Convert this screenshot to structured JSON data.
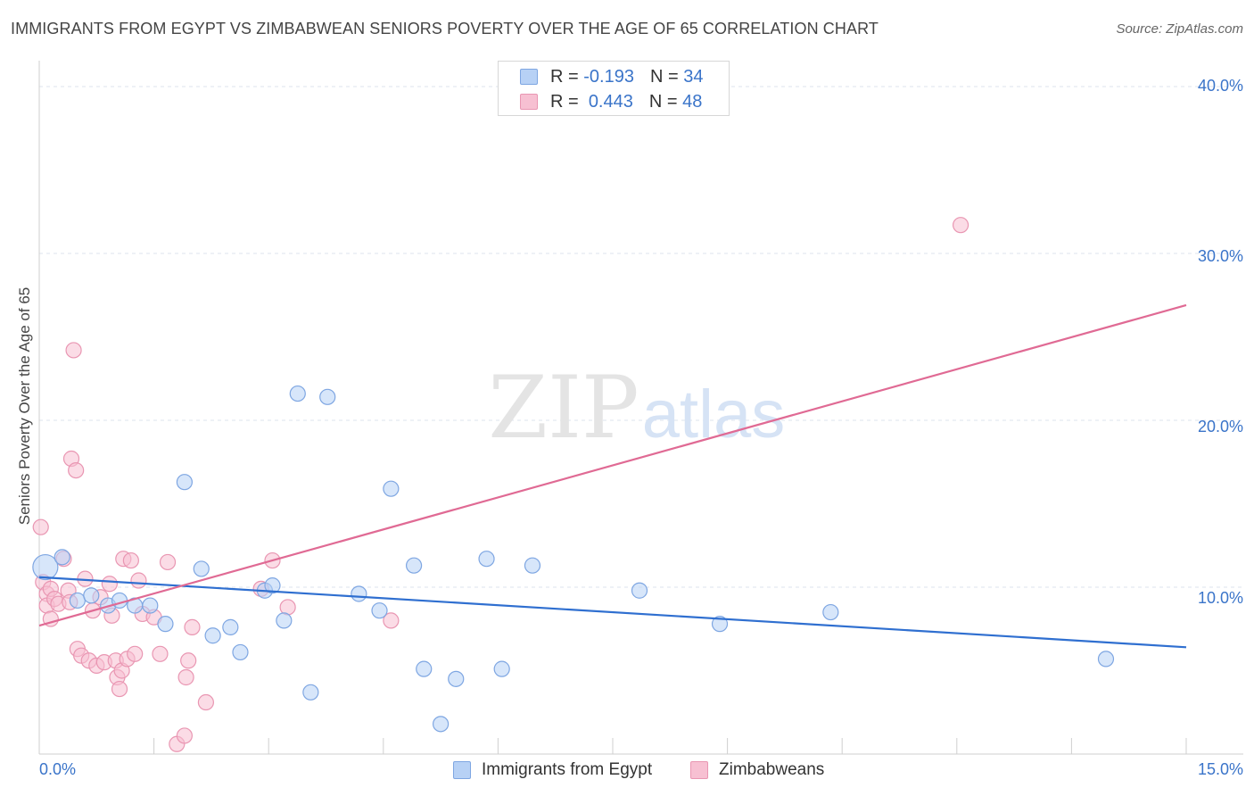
{
  "title": "IMMIGRANTS FROM EGYPT VS ZIMBABWEAN SENIORS POVERTY OVER THE AGE OF 65 CORRELATION CHART",
  "source": "Source: ZipAtlas.com",
  "watermark": {
    "zip": "ZIP",
    "atlas": "atlas"
  },
  "colors": {
    "egypt_fill": "#b7d1f5",
    "egypt_stroke": "#7ea6e2",
    "egypt_line": "#2f6fd0",
    "zimb_fill": "#f7c0d2",
    "zimb_stroke": "#e996b2",
    "zimb_line": "#e06a94",
    "axis_text": "#3a74c9",
    "grid": "#dde3ec"
  },
  "stats": {
    "r_label": "R =",
    "n_label": "N =",
    "egypt": {
      "r": "-0.193",
      "n": "34"
    },
    "zimb": {
      "r": "0.443",
      "n": "48"
    }
  },
  "legend": {
    "egypt": "Immigrants from Egypt",
    "zimb": "Zimbabweans"
  },
  "chart_data": {
    "type": "scatter",
    "title": "IMMIGRANTS FROM EGYPT VS ZIMBABWEAN SENIORS POVERTY OVER THE AGE OF 65 CORRELATION CHART",
    "xlabel": "",
    "ylabel": "Seniors Poverty Over the Age of 65",
    "xlim": [
      0,
      15
    ],
    "ylim": [
      0,
      40
    ],
    "x_ticks": [
      "0.0%",
      "15.0%"
    ],
    "y_ticks": [
      {
        "value": 10,
        "label": "10.0%"
      },
      {
        "value": 20,
        "label": "20.0%"
      },
      {
        "value": 30,
        "label": "30.0%"
      },
      {
        "value": 40,
        "label": "40.0%"
      }
    ],
    "grid": true,
    "legend_position": "bottom",
    "series": [
      {
        "name": "Immigrants from Egypt",
        "trend": [
          [
            0,
            10.6
          ],
          [
            15,
            6.4
          ]
        ],
        "points": [
          {
            "x": 0.08,
            "y": 11.2,
            "big": true
          },
          {
            "x": 0.3,
            "y": 11.8
          },
          {
            "x": 0.5,
            "y": 9.2
          },
          {
            "x": 0.68,
            "y": 9.5
          },
          {
            "x": 0.9,
            "y": 8.9
          },
          {
            "x": 1.05,
            "y": 9.2
          },
          {
            "x": 1.25,
            "y": 8.9
          },
          {
            "x": 1.45,
            "y": 8.9
          },
          {
            "x": 1.65,
            "y": 7.8
          },
          {
            "x": 1.9,
            "y": 16.3
          },
          {
            "x": 2.12,
            "y": 11.1
          },
          {
            "x": 2.27,
            "y": 7.1
          },
          {
            "x": 2.5,
            "y": 7.6
          },
          {
            "x": 2.63,
            "y": 6.1
          },
          {
            "x": 2.95,
            "y": 9.8
          },
          {
            "x": 3.05,
            "y": 10.1
          },
          {
            "x": 3.2,
            "y": 8.0
          },
          {
            "x": 3.38,
            "y": 21.6
          },
          {
            "x": 3.55,
            "y": 3.7
          },
          {
            "x": 3.77,
            "y": 21.4
          },
          {
            "x": 4.18,
            "y": 9.6
          },
          {
            "x": 4.45,
            "y": 8.6
          },
          {
            "x": 4.6,
            "y": 15.9
          },
          {
            "x": 4.9,
            "y": 11.3
          },
          {
            "x": 5.03,
            "y": 5.1
          },
          {
            "x": 5.25,
            "y": 1.8
          },
          {
            "x": 5.45,
            "y": 4.5
          },
          {
            "x": 5.85,
            "y": 11.7
          },
          {
            "x": 6.05,
            "y": 5.1
          },
          {
            "x": 6.45,
            "y": 11.3
          },
          {
            "x": 7.85,
            "y": 9.8
          },
          {
            "x": 8.9,
            "y": 7.8
          },
          {
            "x": 10.35,
            "y": 8.5
          },
          {
            "x": 13.95,
            "y": 5.7
          }
        ]
      },
      {
        "name": "Zimbabweans",
        "trend": [
          [
            0,
            7.7
          ],
          [
            15,
            26.9
          ]
        ],
        "points": [
          {
            "x": 0.02,
            "y": 13.6
          },
          {
            "x": 0.05,
            "y": 10.3
          },
          {
            "x": 0.1,
            "y": 9.6
          },
          {
            "x": 0.15,
            "y": 9.9
          },
          {
            "x": 0.1,
            "y": 8.9
          },
          {
            "x": 0.2,
            "y": 9.3
          },
          {
            "x": 0.15,
            "y": 8.1
          },
          {
            "x": 0.25,
            "y": 9.0
          },
          {
            "x": 0.32,
            "y": 11.7
          },
          {
            "x": 0.38,
            "y": 9.8
          },
          {
            "x": 0.4,
            "y": 9.1
          },
          {
            "x": 0.42,
            "y": 17.7
          },
          {
            "x": 0.45,
            "y": 24.2
          },
          {
            "x": 0.48,
            "y": 17.0
          },
          {
            "x": 0.5,
            "y": 6.3
          },
          {
            "x": 0.55,
            "y": 5.9
          },
          {
            "x": 0.6,
            "y": 10.5
          },
          {
            "x": 0.65,
            "y": 5.6
          },
          {
            "x": 0.7,
            "y": 8.6
          },
          {
            "x": 0.75,
            "y": 5.3
          },
          {
            "x": 0.8,
            "y": 9.4
          },
          {
            "x": 0.85,
            "y": 5.5
          },
          {
            "x": 0.92,
            "y": 10.2
          },
          {
            "x": 0.95,
            "y": 8.3
          },
          {
            "x": 1.0,
            "y": 5.6
          },
          {
            "x": 1.02,
            "y": 4.6
          },
          {
            "x": 1.05,
            "y": 3.9
          },
          {
            "x": 1.08,
            "y": 5.0
          },
          {
            "x": 1.1,
            "y": 11.7
          },
          {
            "x": 1.15,
            "y": 5.7
          },
          {
            "x": 1.2,
            "y": 11.6
          },
          {
            "x": 1.25,
            "y": 6.0
          },
          {
            "x": 1.3,
            "y": 10.4
          },
          {
            "x": 1.35,
            "y": 8.4
          },
          {
            "x": 1.5,
            "y": 8.2
          },
          {
            "x": 1.58,
            "y": 6.0
          },
          {
            "x": 1.68,
            "y": 11.5
          },
          {
            "x": 1.8,
            "y": 0.6
          },
          {
            "x": 1.9,
            "y": 1.1
          },
          {
            "x": 1.92,
            "y": 4.6
          },
          {
            "x": 1.95,
            "y": 5.6
          },
          {
            "x": 2.0,
            "y": 7.6
          },
          {
            "x": 2.18,
            "y": 3.1
          },
          {
            "x": 2.9,
            "y": 9.9
          },
          {
            "x": 3.05,
            "y": 11.6
          },
          {
            "x": 3.25,
            "y": 8.8
          },
          {
            "x": 4.6,
            "y": 8.0
          },
          {
            "x": 12.05,
            "y": 31.7
          }
        ]
      }
    ]
  }
}
